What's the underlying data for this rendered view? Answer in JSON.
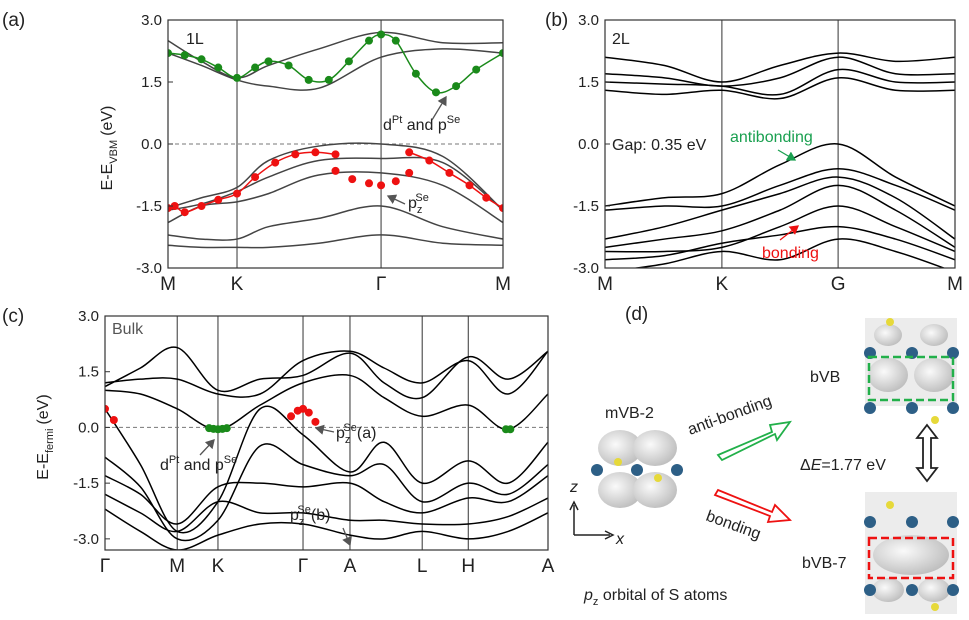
{
  "chart_data": [
    {
      "type": "line",
      "panel_label": "(a)",
      "ylabel": [
        {
          "t": "E-E"
        },
        {
          "sub": "VBM"
        },
        {
          "t": "(eV)"
        }
      ],
      "annotations": [
        {
          "parts": [
            {
              "t": "1L"
            }
          ]
        },
        {
          "parts": [
            {
              "t": "d"
            },
            {
              "sup": "Pt"
            },
            {
              "t": " and p"
            },
            {
              "sup": "Se"
            }
          ]
        },
        {
          "parts": [
            {
              "t": "p"
            },
            {
              "sub": "z"
            },
            {
              "sup": "Se"
            }
          ]
        }
      ],
      "x": [
        0,
        0.1,
        0.206,
        0.3,
        0.45,
        0.636,
        0.82,
        1
      ],
      "xlim": [
        0,
        1
      ],
      "xticks": [
        {
          "value": 0,
          "label": "M"
        },
        {
          "value": 0.206,
          "label": "K"
        },
        {
          "value": 0.636,
          "label": "Γ"
        },
        {
          "value": 1,
          "label": "M"
        }
      ],
      "ylim": [
        -3,
        3
      ],
      "yticks": [
        {
          "value": -3,
          "label": "-3.0"
        },
        {
          "value": -1.5,
          "label": "-1.5"
        },
        {
          "value": 0,
          "label": "0.0"
        },
        {
          "value": 1.5,
          "label": "1.5"
        },
        {
          "value": 3,
          "label": "3.0"
        }
      ],
      "grid": "x",
      "hlines": [
        0
      ],
      "series": [
        {
          "color": "#444444",
          "values": [
            2.5,
            2.0,
            1.6,
            1.9,
            2.3,
            2.7,
            2.45,
            2.45
          ]
        },
        {
          "color": "#444444",
          "values": [
            2.2,
            1.9,
            1.55,
            1.4,
            1.35,
            2.1,
            2.3,
            2.2
          ]
        },
        {
          "color": "#444444",
          "values": [
            -1.55,
            -1.3,
            -1.05,
            -0.4,
            -0.05,
            0.0,
            -0.3,
            -1.6
          ]
        },
        {
          "color": "#444444",
          "values": [
            -1.6,
            -1.45,
            -1.15,
            -0.8,
            -0.4,
            -0.35,
            -0.45,
            -1.6
          ]
        },
        {
          "color": "#444444",
          "values": [
            -1.9,
            -1.5,
            -1.4,
            -1.2,
            -0.75,
            -0.7,
            -1.0,
            -1.9
          ]
        },
        {
          "color": "#444444",
          "values": [
            -2.2,
            -2.3,
            -2.3,
            -2.0,
            -1.8,
            -1.5,
            -2.0,
            -2.3
          ]
        },
        {
          "color": "#444444",
          "values": [
            -2.45,
            -2.5,
            -2.5,
            -2.5,
            -2.4,
            -2.2,
            -2.4,
            -2.45
          ]
        },
        {
          "color": "#1a8a1a",
          "mode": "lines+markers",
          "x": [
            0,
            0.05,
            0.1,
            0.15,
            0.206,
            0.26,
            0.3,
            0.36,
            0.42,
            0.48,
            0.54,
            0.6,
            0.636,
            0.68,
            0.74,
            0.8,
            0.86,
            0.92,
            1
          ],
          "values": [
            2.2,
            2.15,
            2.05,
            1.85,
            1.6,
            1.85,
            2.0,
            1.9,
            1.55,
            1.55,
            2.0,
            2.5,
            2.65,
            2.5,
            1.7,
            1.25,
            1.4,
            1.8,
            2.2
          ]
        },
        {
          "color": "#ee1111",
          "mode": "lines+markers",
          "x": [
            0,
            0.02,
            0.05,
            0.1,
            0.15,
            0.206,
            0.26,
            0.32,
            0.38,
            0.44,
            0.5
          ],
          "values": [
            -1.55,
            -1.5,
            -1.65,
            -1.5,
            -1.35,
            -1.2,
            -0.8,
            -0.45,
            -0.25,
            -0.2,
            -0.25
          ]
        },
        {
          "color": "#ee1111",
          "mode": "markers",
          "x": [
            0.5,
            0.55,
            0.6,
            0.636,
            0.68,
            0.72
          ],
          "values": [
            -0.65,
            -0.85,
            -0.95,
            -1.0,
            -0.9,
            -0.7
          ]
        },
        {
          "color": "#ee1111",
          "mode": "lines+markers",
          "x": [
            0.72,
            0.78,
            0.84,
            0.9,
            0.95,
            1
          ],
          "values": [
            -0.2,
            -0.4,
            -0.7,
            -1.0,
            -1.3,
            -1.55
          ]
        }
      ]
    },
    {
      "type": "line",
      "panel_label": "(b)",
      "annotations": [
        {
          "parts": [
            {
              "t": "2L"
            }
          ]
        },
        {
          "parts": [
            {
              "t": "Gap: 0.35 eV"
            }
          ]
        },
        {
          "parts": [
            {
              "t": "antibonding"
            }
          ],
          "color": "#1aa050"
        },
        {
          "parts": [
            {
              "t": "bonding"
            }
          ],
          "color": "#ee1111"
        }
      ],
      "x": [
        0,
        0.17,
        0.334,
        0.5,
        0.666,
        0.83,
        1
      ],
      "xlim": [
        0,
        1
      ],
      "xticks": [
        {
          "value": 0,
          "label": "M"
        },
        {
          "value": 0.334,
          "label": "K"
        },
        {
          "value": 0.666,
          "label": "G"
        },
        {
          "value": 1,
          "label": "M"
        }
      ],
      "ylim": [
        -3,
        3
      ],
      "yticks": [
        {
          "value": -3,
          "label": "-3.0"
        },
        {
          "value": -1.5,
          "label": "-1.5"
        },
        {
          "value": 0,
          "label": "0.0"
        },
        {
          "value": 1.5,
          "label": "1.5"
        },
        {
          "value": 3,
          "label": "3.0"
        }
      ],
      "grid": "x",
      "series": [
        {
          "color": "#000000",
          "values": [
            2.1,
            1.9,
            1.5,
            1.9,
            2.2,
            2.0,
            2.1
          ]
        },
        {
          "color": "#000000",
          "values": [
            1.7,
            1.6,
            1.4,
            1.6,
            2.1,
            1.7,
            1.7
          ]
        },
        {
          "color": "#000000",
          "values": [
            1.5,
            1.45,
            1.4,
            1.2,
            1.8,
            1.5,
            1.5
          ]
        },
        {
          "color": "#000000",
          "values": [
            1.3,
            1.2,
            1.3,
            1.1,
            1.6,
            1.3,
            1.3
          ]
        },
        {
          "color": "#000000",
          "values": [
            -1.5,
            -1.3,
            -1.2,
            -0.5,
            0.0,
            -0.8,
            -1.5
          ]
        },
        {
          "color": "#000000",
          "values": [
            -1.6,
            -1.5,
            -1.5,
            -1.0,
            -0.6,
            -1.0,
            -1.6
          ]
        },
        {
          "color": "#000000",
          "values": [
            -2.3,
            -2.0,
            -1.6,
            -1.2,
            -0.8,
            -1.3,
            -2.3
          ]
        },
        {
          "color": "#000000",
          "values": [
            -2.5,
            -2.3,
            -2.1,
            -1.6,
            -1.0,
            -1.6,
            -2.5
          ]
        },
        {
          "color": "#000000",
          "values": [
            -2.6,
            -2.6,
            -2.5,
            -2.0,
            -1.5,
            -2.0,
            -2.6
          ]
        },
        {
          "color": "#000000",
          "values": [
            -2.8,
            -2.7,
            -2.4,
            -2.2,
            -2.0,
            -2.3,
            -2.8
          ]
        },
        {
          "color": "#000000",
          "values": [
            -3.1,
            -2.9,
            -2.6,
            -2.8,
            -2.3,
            -2.6,
            -3.1
          ]
        }
      ]
    },
    {
      "type": "line",
      "panel_label": "(c)",
      "ylabel": [
        {
          "t": "E-E"
        },
        {
          "sub": "fermi"
        },
        {
          "t": "(eV)"
        }
      ],
      "annotations": [
        {
          "parts": [
            {
              "t": "Bulk"
            }
          ],
          "color": "#555555"
        },
        {
          "parts": [
            {
              "t": "d"
            },
            {
              "sup": "Pt"
            },
            {
              "t": " and p"
            },
            {
              "sup": "Se"
            }
          ]
        },
        {
          "parts": [
            {
              "t": "p"
            },
            {
              "sub": "z"
            },
            {
              "sup": "Se"
            },
            {
              "t": "(a)"
            }
          ]
        },
        {
          "parts": [
            {
              "t": "p"
            },
            {
              "sub": "z"
            },
            {
              "sup": "Se"
            },
            {
              "t": "(b)"
            }
          ]
        }
      ],
      "x": [
        0,
        0.08,
        0.163,
        0.255,
        0.35,
        0.447,
        0.553,
        0.63,
        0.716,
        0.82,
        0.91,
        1
      ],
      "xlim": [
        0,
        1
      ],
      "xticks": [
        {
          "value": 0,
          "label": "Γ"
        },
        {
          "value": 0.163,
          "label": "M"
        },
        {
          "value": 0.255,
          "label": "K"
        },
        {
          "value": 0.447,
          "label": "Γ"
        },
        {
          "value": 0.553,
          "label": "A"
        },
        {
          "value": 0.716,
          "label": "L"
        },
        {
          "value": 0.82,
          "label": "H"
        },
        {
          "value": 1,
          "label": "A"
        }
      ],
      "ylim": [
        -3.3,
        3
      ],
      "yticks": [
        {
          "value": -3,
          "label": "-3.0"
        },
        {
          "value": -1.5,
          "label": "-1.5"
        },
        {
          "value": 0,
          "label": "0.0"
        },
        {
          "value": 1.5,
          "label": "1.5"
        },
        {
          "value": 3,
          "label": "3.0"
        }
      ],
      "grid": "x",
      "hlines": [
        0
      ],
      "series": [
        {
          "color": "#000000",
          "values": [
            1.1,
            1.6,
            2.15,
            1.0,
            1.3,
            1.4,
            2.0,
            1.2,
            0.8,
            1.9,
            1.3,
            2.05
          ]
        },
        {
          "color": "#000000",
          "values": [
            1.2,
            1.3,
            1.3,
            0.9,
            0.9,
            1.8,
            2.05,
            1.6,
            1.2,
            1.8,
            0.9,
            2.05
          ]
        },
        {
          "color": "#000000",
          "values": [
            1.0,
            0.9,
            0.5,
            -0.05,
            0.6,
            1.2,
            1.4,
            0.8,
            0.3,
            0.6,
            -0.05,
            0.9
          ]
        },
        {
          "color": "#000000",
          "values": [
            0.5,
            -1.0,
            -2.8,
            -2.0,
            0.5,
            -0.2,
            -1.2,
            -0.4,
            -1.5,
            -0.9,
            -1.5,
            -0.4
          ]
        },
        {
          "color": "#000000",
          "values": [
            -0.8,
            -1.6,
            -3.0,
            -2.5,
            -0.5,
            -1.0,
            -1.3,
            -1.0,
            -2.0,
            -1.5,
            -1.8,
            -1.0
          ]
        },
        {
          "color": "#000000",
          "values": [
            -1.3,
            -1.8,
            -2.6,
            -1.6,
            -1.5,
            -1.6,
            -1.5,
            -2.0,
            -2.3,
            -1.9,
            -2.0,
            -1.3
          ]
        },
        {
          "color": "#000000",
          "values": [
            -1.8,
            -2.3,
            -2.8,
            -2.0,
            -2.3,
            -2.3,
            -2.5,
            -2.5,
            -2.6,
            -2.6,
            -2.4,
            -1.9
          ]
        },
        {
          "color": "#000000",
          "values": [
            -2.2,
            -2.8,
            -3.3,
            -2.9,
            -2.6,
            -2.6,
            -2.9,
            -3.0,
            -2.8,
            -3.0,
            -2.8,
            -2.3
          ]
        },
        {
          "color": "#1a8a1a",
          "mode": "markers",
          "x": [
            0.235,
            0.245,
            0.255,
            0.265,
            0.275,
            0.905,
            0.915
          ],
          "values": [
            -0.02,
            -0.04,
            -0.05,
            -0.04,
            -0.02,
            -0.05,
            -0.05
          ]
        },
        {
          "color": "#ee1111",
          "mode": "markers",
          "x": [
            0,
            0.02,
            0.42,
            0.435,
            0.447,
            0.46,
            0.475
          ],
          "values": [
            0.5,
            0.2,
            0.3,
            0.45,
            0.5,
            0.4,
            0.15
          ]
        }
      ]
    }
  ],
  "diagram": {
    "panel_label": "(d)",
    "left_label": "mVB-2",
    "upper_arrow": "anti-bonding",
    "lower_arrow": "bonding",
    "upper_label": "bVB",
    "lower_label": "bVB-7",
    "gap": [
      {
        "t": "Δ"
      },
      {
        "i": "E"
      },
      {
        "t": "=1.77 eV"
      }
    ],
    "axis_z": "z",
    "axis_x": "x",
    "caption": [
      {
        "i": "p"
      },
      {
        "sub": "z"
      },
      {
        "t": " orbital of S atoms"
      }
    ]
  }
}
